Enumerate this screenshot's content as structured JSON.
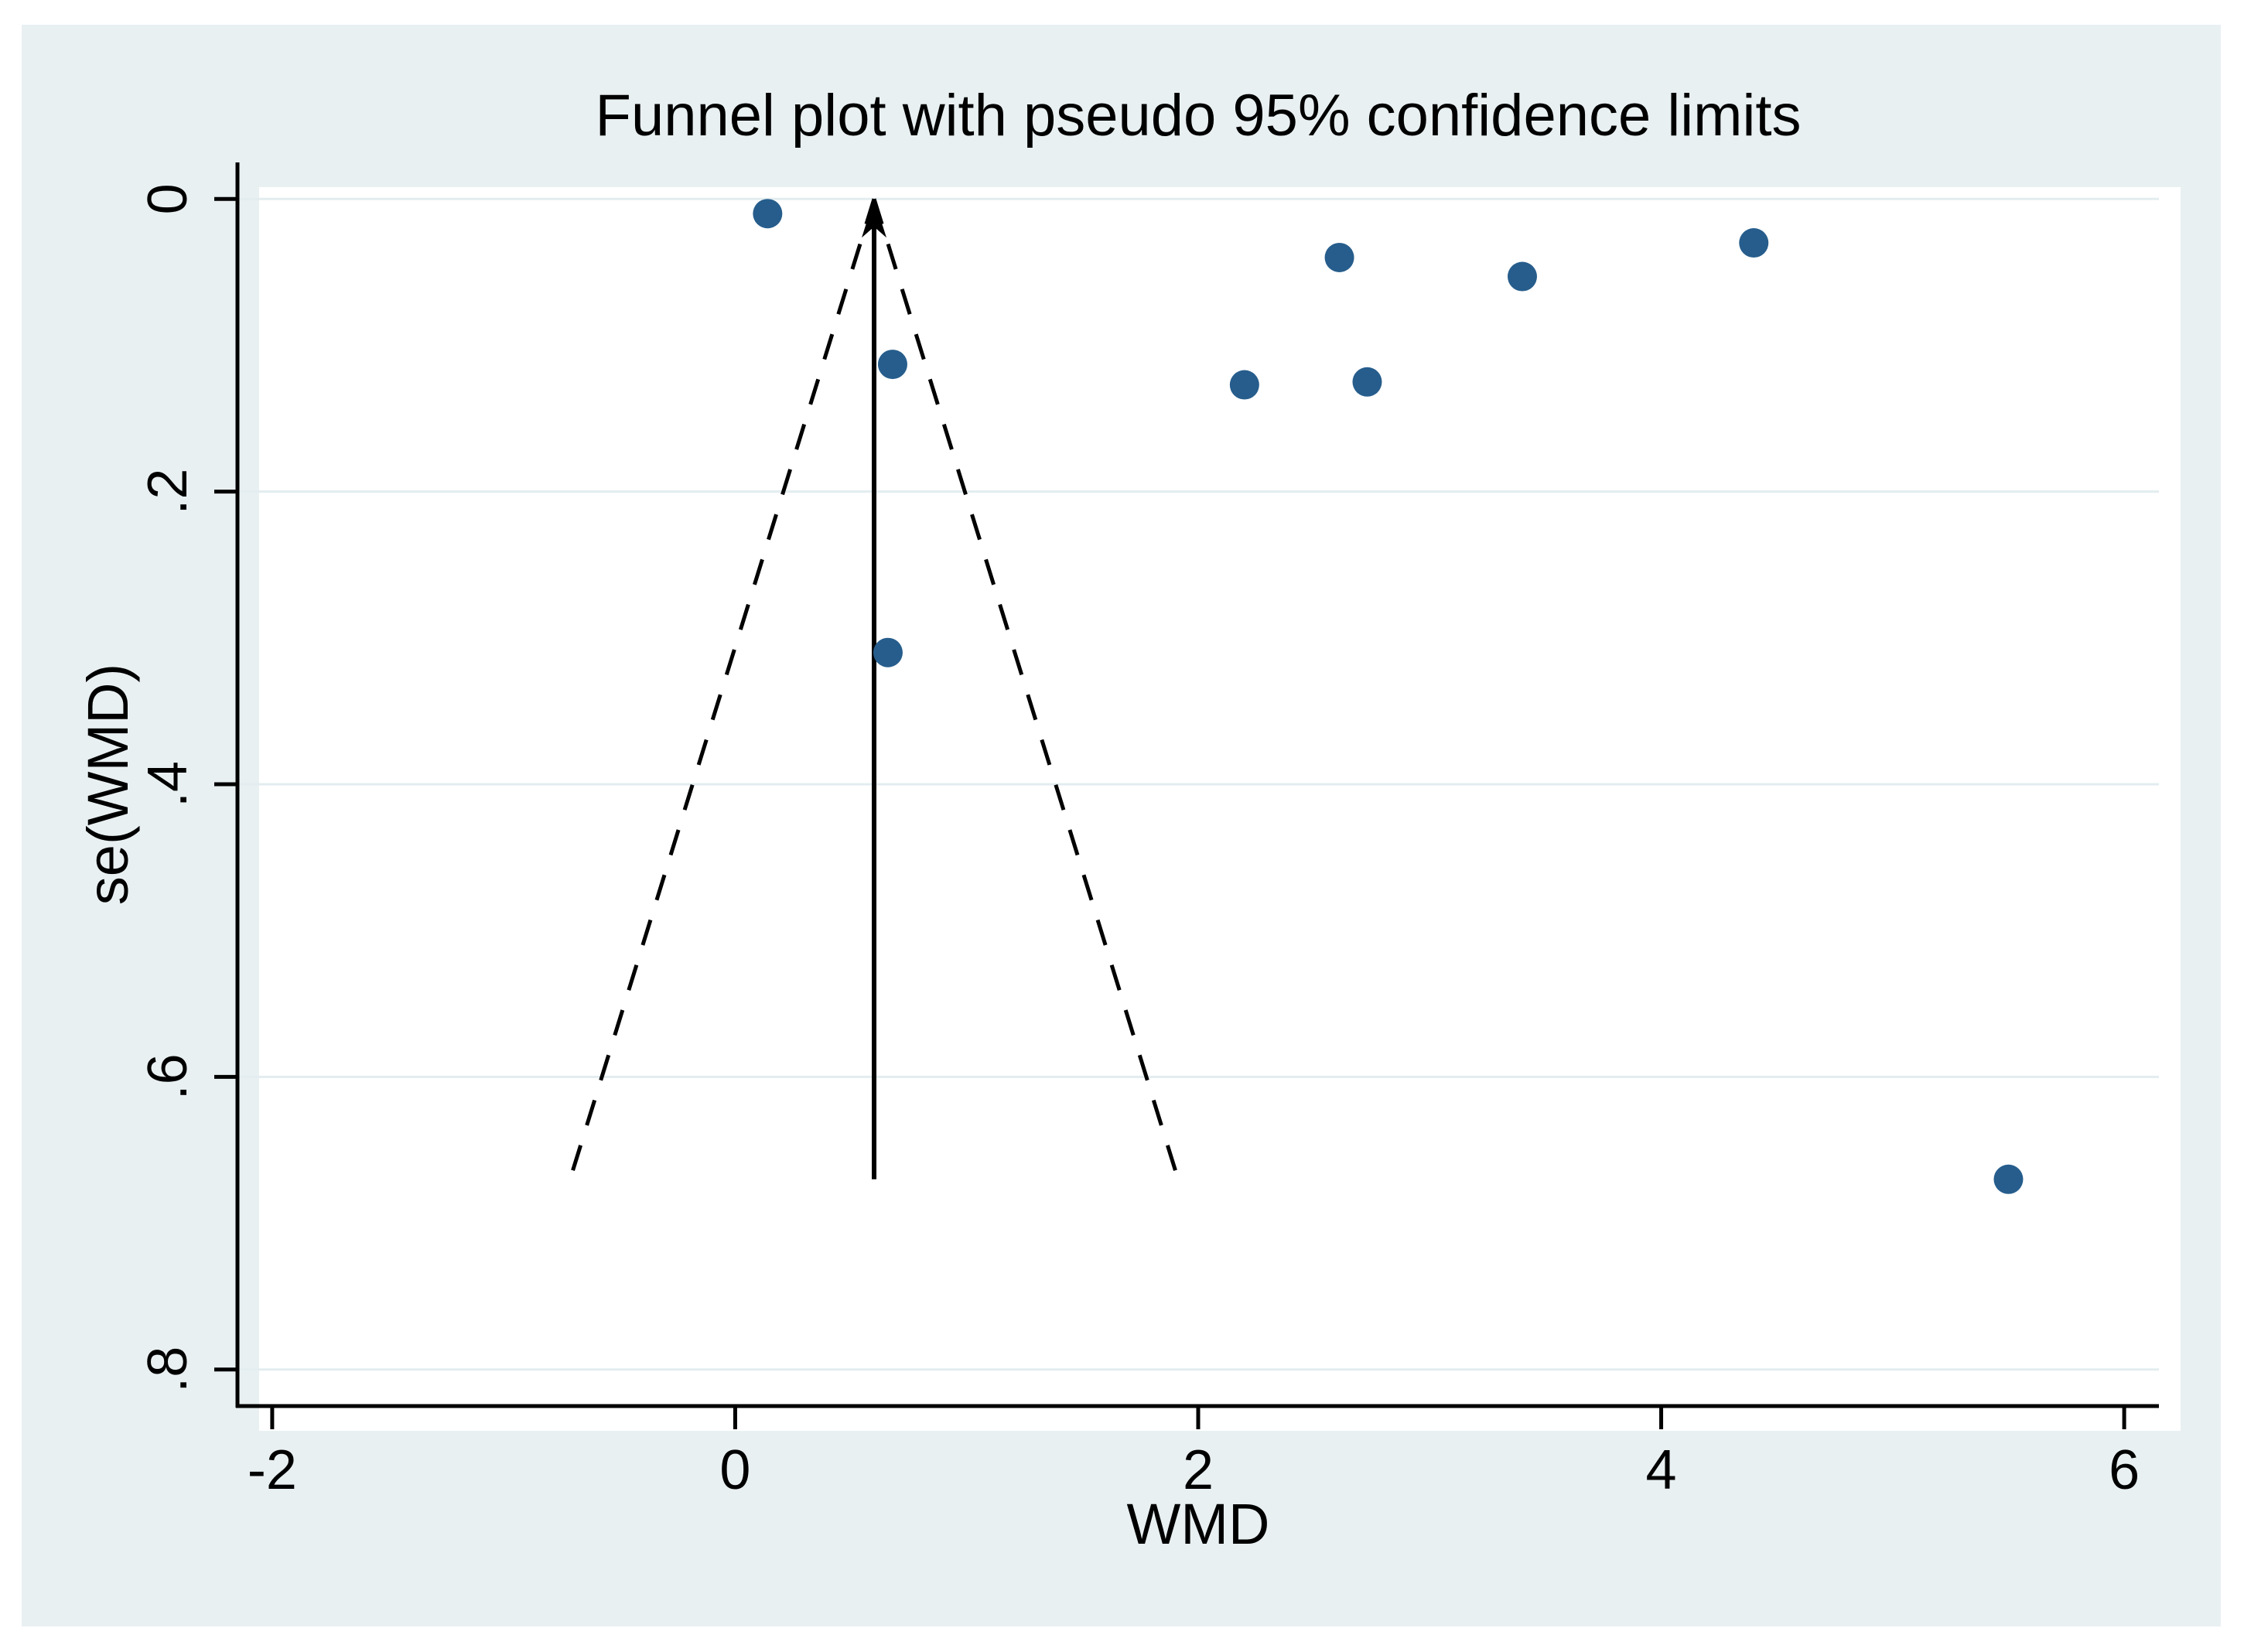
{
  "title": "Funnel plot with pseudo 95% confidence limits",
  "colors": {
    "canvas_bg": "#e9f0f2",
    "plot_bg": "#ffffff",
    "grid": "#e3edf0",
    "axis": "#000000",
    "funnel_line": "#000000",
    "marker": "#265d8c"
  },
  "chart_data": {
    "type": "scatter",
    "title": "Funnel plot with pseudo 95% confidence limits",
    "xlabel": "WMD",
    "ylabel": "se(WMD)",
    "x_ticks": [
      -2,
      0,
      2,
      4,
      6
    ],
    "x_tick_labels": [
      "-2",
      "0",
      "2",
      "4",
      "6"
    ],
    "y_ticks": [
      0,
      0.2,
      0.4,
      0.6,
      0.8
    ],
    "y_tick_labels": [
      "0",
      ".2",
      ".4",
      ".6",
      ".8"
    ],
    "xlim": [
      -2.15,
      6.15
    ],
    "ylim": [
      -0.025,
      0.825
    ],
    "y_axis_inverted": true,
    "grid": "horizontal-only",
    "legend": "none",
    "points": [
      {
        "wmd": 0.14,
        "se": 0.01
      },
      {
        "wmd": 0.68,
        "se": 0.113
      },
      {
        "wmd": 0.66,
        "se": 0.31
      },
      {
        "wmd": 2.2,
        "se": 0.127
      },
      {
        "wmd": 2.61,
        "se": 0.04
      },
      {
        "wmd": 2.73,
        "se": 0.125
      },
      {
        "wmd": 3.4,
        "se": 0.053
      },
      {
        "wmd": 4.4,
        "se": 0.03
      },
      {
        "wmd": 5.5,
        "se": 0.67
      }
    ],
    "funnel": {
      "center_wmd": 0.6,
      "se_top": 0,
      "se_max": 0.67,
      "ci_multiplier": 1.96,
      "center_line_style": "solid-with-up-arrow",
      "limit_line_style": "dashed"
    }
  }
}
